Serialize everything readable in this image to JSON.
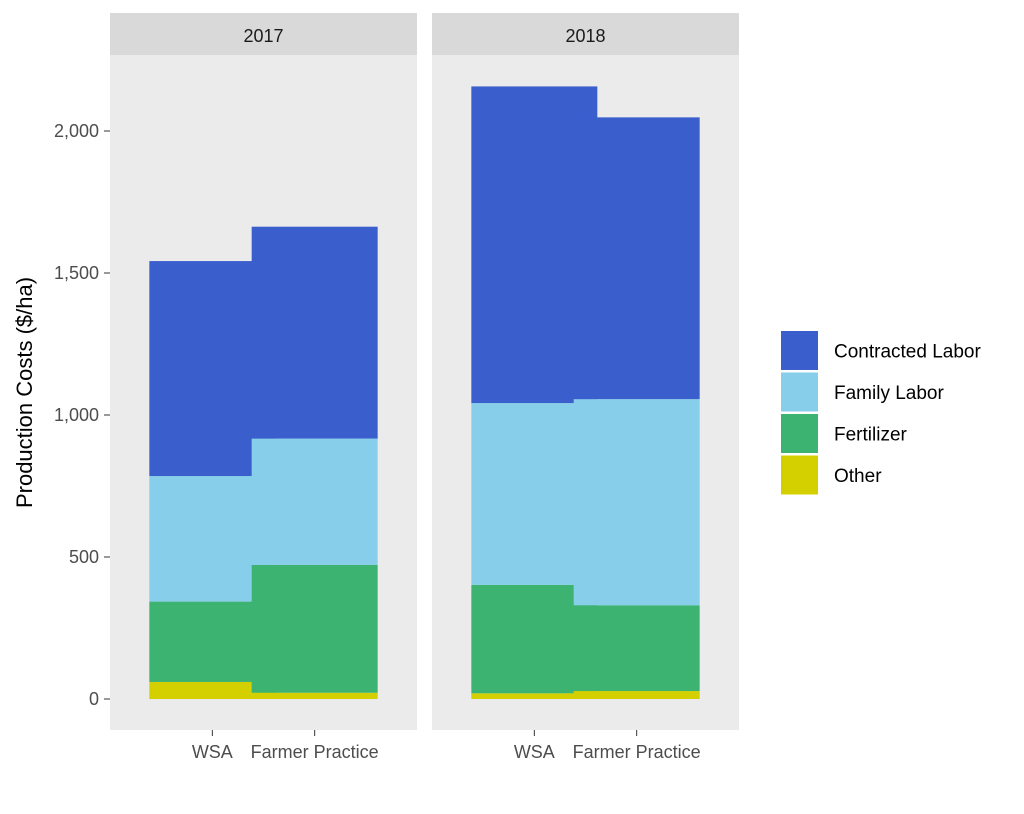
{
  "chart_data": {
    "type": "bar",
    "stacked": true,
    "facets": [
      "2017",
      "2018"
    ],
    "categories": [
      "WSA",
      "Farmer Practice"
    ],
    "ylabel": "Production Costs ($/ha)",
    "xlabel": "",
    "ylim": [
      0,
      2250
    ],
    "yticks": [
      0,
      500,
      1000,
      1500,
      2000
    ],
    "ytick_labels": [
      "0",
      "500",
      "1,000",
      "1,500",
      "2,000"
    ],
    "legend_position": "right",
    "series": [
      {
        "name": "Other",
        "color": "#D4D000",
        "values": {
          "2017": [
            60,
            22
          ],
          "2018": [
            20,
            28
          ]
        }
      },
      {
        "name": "Fertilizer",
        "color": "#3CB371",
        "values": {
          "2017": [
            283,
            450
          ],
          "2018": [
            382,
            302
          ]
        }
      },
      {
        "name": "Family Labor",
        "color": "#87CEEB",
        "values": {
          "2017": [
            442,
            445
          ],
          "2018": [
            640,
            726
          ]
        }
      },
      {
        "name": "Contracted Labor",
        "color": "#3A5FCD",
        "values": {
          "2017": [
            757,
            746
          ],
          "2018": [
            1115,
            992
          ]
        }
      }
    ],
    "legend_order": [
      "Contracted Labor",
      "Family Labor",
      "Fertilizer",
      "Other"
    ]
  }
}
